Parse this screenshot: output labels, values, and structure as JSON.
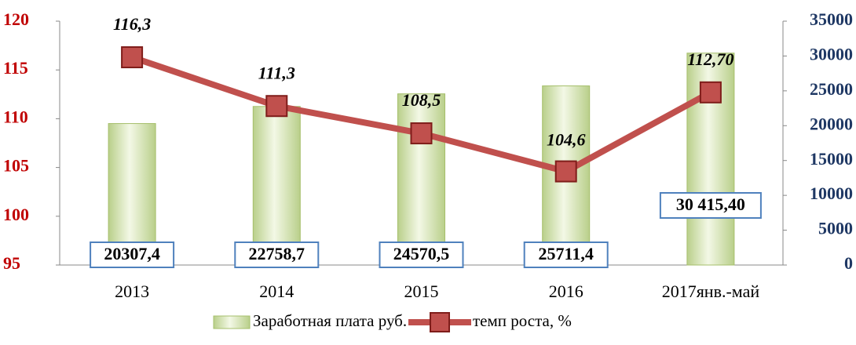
{
  "chart_data": {
    "type": "combo",
    "categories": [
      "2013",
      "2014",
      "2015",
      "2016",
      "2017янв.-май"
    ],
    "series": [
      {
        "name": "Заработная плата руб.",
        "type": "bar",
        "axis": "y2",
        "color": "#d7e4bd",
        "values": [
          20307.4,
          22758.7,
          24570.5,
          25711.4,
          30415.4
        ],
        "value_labels": [
          "20307,4",
          "22758,7",
          "24570,5",
          "25711,4",
          "30 415,40"
        ]
      },
      {
        "name": "темп роста, %",
        "type": "line",
        "color": "#c0504d",
        "values": [
          116.3,
          111.3,
          108.5,
          104.6,
          112.7
        ],
        "value_labels": [
          "116,3",
          "111,3",
          "108,5",
          "104,6",
          "112,70"
        ]
      }
    ],
    "ylim": [
      95,
      120
    ],
    "yticks": [
      95,
      100,
      105,
      110,
      115,
      120
    ],
    "y2lim": [
      0,
      35000
    ],
    "y2ticks": [
      0,
      5000,
      10000,
      15000,
      20000,
      25000,
      30000,
      35000
    ],
    "legend": "bottom"
  }
}
